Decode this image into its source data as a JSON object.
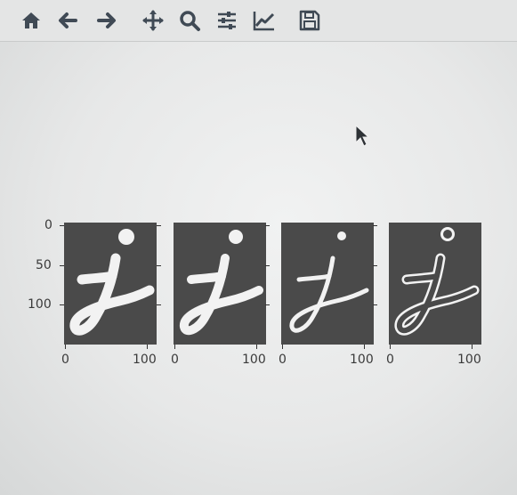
{
  "toolbar": {
    "buttons": [
      {
        "icon": "home-icon"
      },
      {
        "icon": "back-arrow-icon"
      },
      {
        "icon": "forward-arrow-icon"
      },
      {
        "icon": "pan-icon"
      },
      {
        "icon": "zoom-icon"
      },
      {
        "icon": "configure-subplots-icon"
      },
      {
        "icon": "edit-axes-icon"
      },
      {
        "icon": "save-icon"
      }
    ]
  },
  "figure": {
    "y_ticks": [
      "0",
      "50",
      "100"
    ],
    "x_ticks": [
      "0",
      "100"
    ],
    "panels": [
      {
        "style": "thick-filled"
      },
      {
        "style": "thick-filled"
      },
      {
        "style": "thin"
      },
      {
        "style": "outline"
      }
    ]
  },
  "colors": {
    "image_bg": "#4a4a4a",
    "stroke": "#f2f2f2",
    "icon": "#404a55"
  }
}
